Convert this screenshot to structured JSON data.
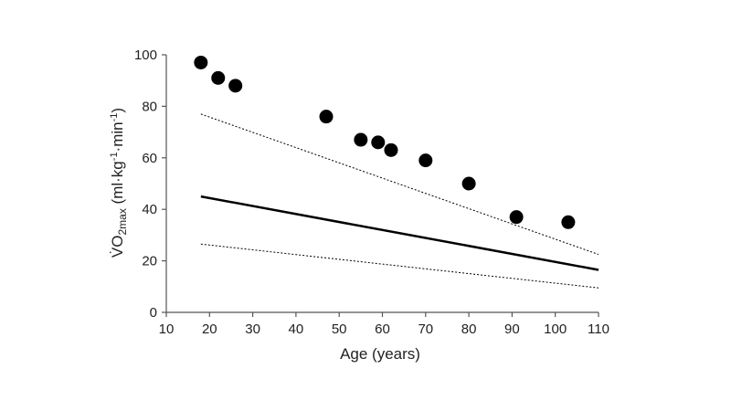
{
  "chart_data": {
    "type": "scatter",
    "xlabel": "Age (years)",
    "ylabel": {
      "parts": [
        "V̇O",
        "2max",
        " (ml·kg",
        "-1",
        "·min",
        "-1",
        ")"
      ]
    },
    "xlim": [
      10,
      110
    ],
    "ylim": [
      0,
      100
    ],
    "xticks": [
      10,
      20,
      30,
      40,
      50,
      60,
      70,
      80,
      90,
      100,
      110
    ],
    "yticks": [
      0,
      20,
      40,
      60,
      80,
      100
    ],
    "grid": false,
    "points": [
      {
        "x": 18,
        "y": 97
      },
      {
        "x": 22,
        "y": 91
      },
      {
        "x": 26,
        "y": 88
      },
      {
        "x": 47,
        "y": 76
      },
      {
        "x": 55,
        "y": 67
      },
      {
        "x": 59,
        "y": 66
      },
      {
        "x": 62,
        "y": 63
      },
      {
        "x": 70,
        "y": 59
      },
      {
        "x": 80,
        "y": 50
      },
      {
        "x": 91,
        "y": 37
      },
      {
        "x": 103,
        "y": 35
      }
    ],
    "lines": [
      {
        "style": "solid",
        "points": [
          [
            18,
            45
          ],
          [
            110,
            16.5
          ]
        ]
      },
      {
        "style": "dotted",
        "points": [
          [
            18,
            77
          ],
          [
            110,
            22.5
          ]
        ]
      },
      {
        "style": "dotted",
        "points": [
          [
            18,
            26.5
          ],
          [
            110,
            9.5
          ]
        ]
      }
    ],
    "colors": {
      "marker": "#000000",
      "line": "#000000",
      "axis": "#555555"
    }
  }
}
